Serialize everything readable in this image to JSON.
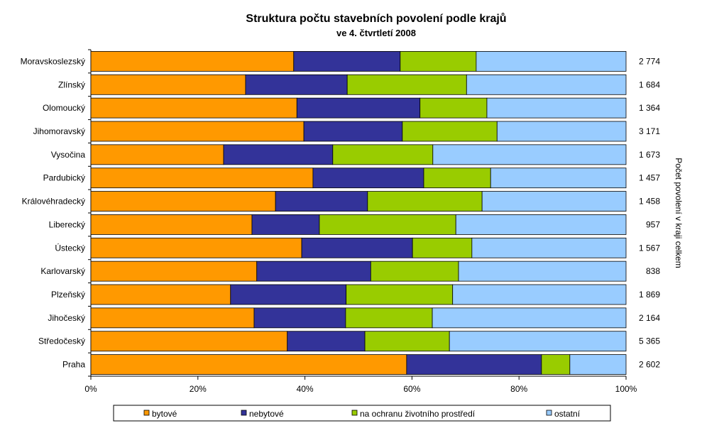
{
  "chart_data": {
    "type": "bar",
    "orientation": "horizontal",
    "stacked": "percent",
    "title": "Struktura počtu stavebních povolení podle krajů",
    "subtitle": "ve 4. čtvrtletí 2008",
    "ylabel_right": "Počet povolení v kraji celkem",
    "xlim": [
      0,
      100
    ],
    "x_ticks": [
      "0%",
      "20%",
      "40%",
      "60%",
      "80%",
      "100%"
    ],
    "legend_position": "bottom",
    "categories": [
      "Moravskoslezský",
      "Zlínský",
      "Olomoucký",
      "Jihomoravský",
      "Vysočina",
      "Pardubický",
      "Královéhradecký",
      "Liberecký",
      "Ústecký",
      "Karlovarský",
      "Plzeňský",
      "Jihočeský",
      "Středočeský",
      "Praha"
    ],
    "totals": [
      "2 774",
      "1 684",
      "1 364",
      "3 171",
      "1 673",
      "1 457",
      "1 458",
      "957",
      "1 567",
      "838",
      "1 869",
      "2 164",
      "5 365",
      "2 602"
    ],
    "series": [
      {
        "name": "bytové",
        "color": "#FF9900",
        "values": [
          37.9,
          28.9,
          38.5,
          39.8,
          24.8,
          41.5,
          34.5,
          30.1,
          39.4,
          31.0,
          26.1,
          30.5,
          36.7,
          59.0
        ]
      },
      {
        "name": "nebytové",
        "color": "#333399",
        "values": [
          19.9,
          19.0,
          23.0,
          18.4,
          20.4,
          20.7,
          17.2,
          12.6,
          20.7,
          21.3,
          21.6,
          17.1,
          14.5,
          25.2
        ]
      },
      {
        "name": "na ochranu životního prostředí",
        "color": "#99CC00",
        "values": [
          14.2,
          22.3,
          12.5,
          17.7,
          18.7,
          12.5,
          21.4,
          25.5,
          11.1,
          16.4,
          19.9,
          16.2,
          15.8,
          5.3
        ]
      },
      {
        "name": "ostatní",
        "color": "#99CCFF",
        "values": [
          28.0,
          29.8,
          26.0,
          24.1,
          36.1,
          25.3,
          26.9,
          31.8,
          28.8,
          31.3,
          32.4,
          36.2,
          33.0,
          10.5
        ]
      }
    ]
  }
}
